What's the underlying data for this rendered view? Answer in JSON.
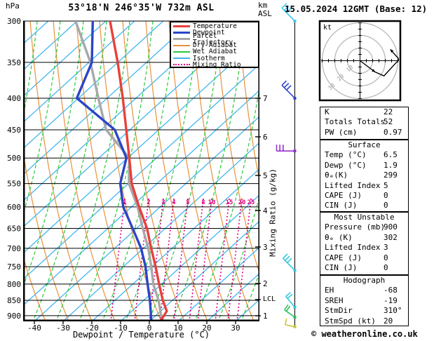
{
  "header": {
    "station": "53°18'N 246°35'W 732m ASL",
    "datetime": "15.05.2024 12GMT (Base: 12)",
    "copyright": "© weatheronline.co.uk"
  },
  "axes": {
    "pressure_unit": "hPa",
    "altitude_unit_line1": "km",
    "altitude_unit_line2": "ASL",
    "x_label": "Dewpoint / Temperature (°C)",
    "mixing_axis_label": "Mixing Ratio (g/kg)",
    "lcl_label": "LCL",
    "pressure_ticks": [
      300,
      350,
      400,
      450,
      500,
      550,
      600,
      650,
      700,
      750,
      800,
      850,
      900
    ],
    "temp_ticks": [
      -40,
      -30,
      -20,
      -10,
      0,
      10,
      20,
      30
    ],
    "km_ticks": [
      1,
      2,
      3,
      4,
      5,
      6,
      7
    ],
    "km_tick_y": [
      450,
      404,
      352,
      300,
      250,
      195,
      140
    ],
    "mixing_ratio_ticks": [
      1,
      2,
      3,
      4,
      5,
      8,
      10,
      15,
      20,
      25
    ],
    "mixing_ratio_x": [
      178,
      212,
      233,
      248,
      268,
      290,
      302,
      327,
      345,
      358
    ]
  },
  "legend": [
    {
      "label": "Temperature",
      "color": "#e8403a",
      "style": "thick"
    },
    {
      "label": "Dewpoint",
      "color": "#2b45c8",
      "style": "thick"
    },
    {
      "label": "Parcel Trajectory",
      "color": "#a8a8a8",
      "style": "thick"
    },
    {
      "label": "Dry Adiabat",
      "color": "#e8913c",
      "style": "thin"
    },
    {
      "label": "Wet Adiabat",
      "color": "#2cc93e",
      "style": "thin"
    },
    {
      "label": "Isotherm",
      "color": "#41b6f0",
      "style": "thin"
    },
    {
      "label": "Mixing Ratio",
      "color": "#df0080",
      "style": "dotted"
    }
  ],
  "chart_data": {
    "type": "line",
    "title": "53°18'N 246°35'W 732m ASL",
    "xlabel": "Dewpoint / Temperature (°C)",
    "ylabel": "hPa",
    "y_scale": "log-pressure",
    "xlim": [
      -44,
      38
    ],
    "ylim": [
      920,
      300
    ],
    "series": [
      {
        "name": "Temperature",
        "color": "#e8403a",
        "points": [
          [
            300,
            -45
          ],
          [
            350,
            -38
          ],
          [
            400,
            -32.5
          ],
          [
            450,
            -28
          ],
          [
            500,
            -24
          ],
          [
            550,
            -20.5
          ],
          [
            600,
            -15.5
          ],
          [
            650,
            -10.5
          ],
          [
            700,
            -7
          ],
          [
            750,
            -3.5
          ],
          [
            800,
            -0.5
          ],
          [
            850,
            2.5
          ],
          [
            885,
            5
          ],
          [
            915,
            4
          ]
        ]
      },
      {
        "name": "Dewpoint",
        "color": "#2b45c8",
        "points": [
          [
            300,
            -51
          ],
          [
            350,
            -47
          ],
          [
            400,
            -48.5
          ],
          [
            450,
            -32
          ],
          [
            500,
            -25
          ],
          [
            550,
            -24.5
          ],
          [
            600,
            -21
          ],
          [
            650,
            -15.5
          ],
          [
            700,
            -10.5
          ],
          [
            750,
            -7
          ],
          [
            800,
            -4.5
          ],
          [
            850,
            -2
          ],
          [
            900,
            0
          ],
          [
            915,
            0.5
          ]
        ]
      },
      {
        "name": "Parcel Trajectory",
        "color": "#a8a8a8",
        "points": [
          [
            300,
            -57
          ],
          [
            350,
            -47.5
          ],
          [
            400,
            -41
          ],
          [
            450,
            -35
          ],
          [
            500,
            -24
          ],
          [
            550,
            -21.5
          ],
          [
            600,
            -16
          ],
          [
            650,
            -12
          ],
          [
            700,
            -8
          ],
          [
            750,
            -5
          ],
          [
            800,
            -2.5
          ],
          [
            850,
            1
          ],
          [
            900,
            3.5
          ],
          [
            915,
            4.5
          ]
        ]
      }
    ]
  },
  "wind_barbs": [
    {
      "pressure": 300,
      "color": "#3fc8f0",
      "direction": 315,
      "feathers": 3,
      "length": 26
    },
    {
      "pressure": 400,
      "color": "#2b45c8",
      "direction": 315,
      "feathers": 3,
      "length": 26
    },
    {
      "pressure": 487,
      "color": "#9a30d0",
      "direction": 270,
      "feathers": 3,
      "length": 26
    },
    {
      "pressure": 760,
      "color": "#30c8e0",
      "direction": 315,
      "feathers": 3,
      "length": 24
    },
    {
      "pressure": 872,
      "color": "#30c8e0",
      "direction": 320,
      "feathers": 2,
      "length": 20
    },
    {
      "pressure": 905,
      "color": "#2ebe5a",
      "direction": 305,
      "feathers": 2,
      "length": 18
    },
    {
      "pressure": 938,
      "color": "#c8c832",
      "direction": 282,
      "feathers": 1,
      "length": 14
    }
  ],
  "hodograph": {
    "unit": "kt",
    "ring_labels": [
      "10",
      "20",
      "30"
    ],
    "rings_kt": [
      10,
      20,
      30
    ],
    "trace_uv_kt": [
      [
        0,
        0
      ],
      [
        12,
        -9
      ],
      [
        19,
        -12
      ],
      [
        31,
        1
      ]
    ],
    "storm_vector_uv_kt": [
      24,
      9
    ]
  },
  "tables": {
    "indices": {
      "rows": [
        [
          "K",
          "22"
        ],
        [
          "Totals Totals",
          "52"
        ],
        [
          "PW (cm)",
          "0.97"
        ]
      ]
    },
    "surface": {
      "title": "Surface",
      "rows": [
        [
          "Temp (°C)",
          "6.5"
        ],
        [
          "Dewp (°C)",
          "1.9"
        ],
        [
          "θₑ(K)",
          "299"
        ],
        [
          "Lifted Index",
          "5"
        ],
        [
          "CAPE (J)",
          "0"
        ],
        [
          "CIN (J)",
          "0"
        ]
      ]
    },
    "most_unstable": {
      "title": "Most Unstable",
      "rows": [
        [
          "Pressure (mb)",
          "900"
        ],
        [
          "θₑ (K)",
          "302"
        ],
        [
          "Lifted Index",
          "3"
        ],
        [
          "CAPE (J)",
          "0"
        ],
        [
          "CIN (J)",
          "0"
        ]
      ]
    },
    "hodograph": {
      "title": "Hodograph",
      "rows": [
        [
          "EH",
          "-68"
        ],
        [
          "SREH",
          "-19"
        ],
        [
          "StmDir",
          "310°"
        ],
        [
          "StmSpd (kt)",
          "20"
        ]
      ]
    }
  }
}
